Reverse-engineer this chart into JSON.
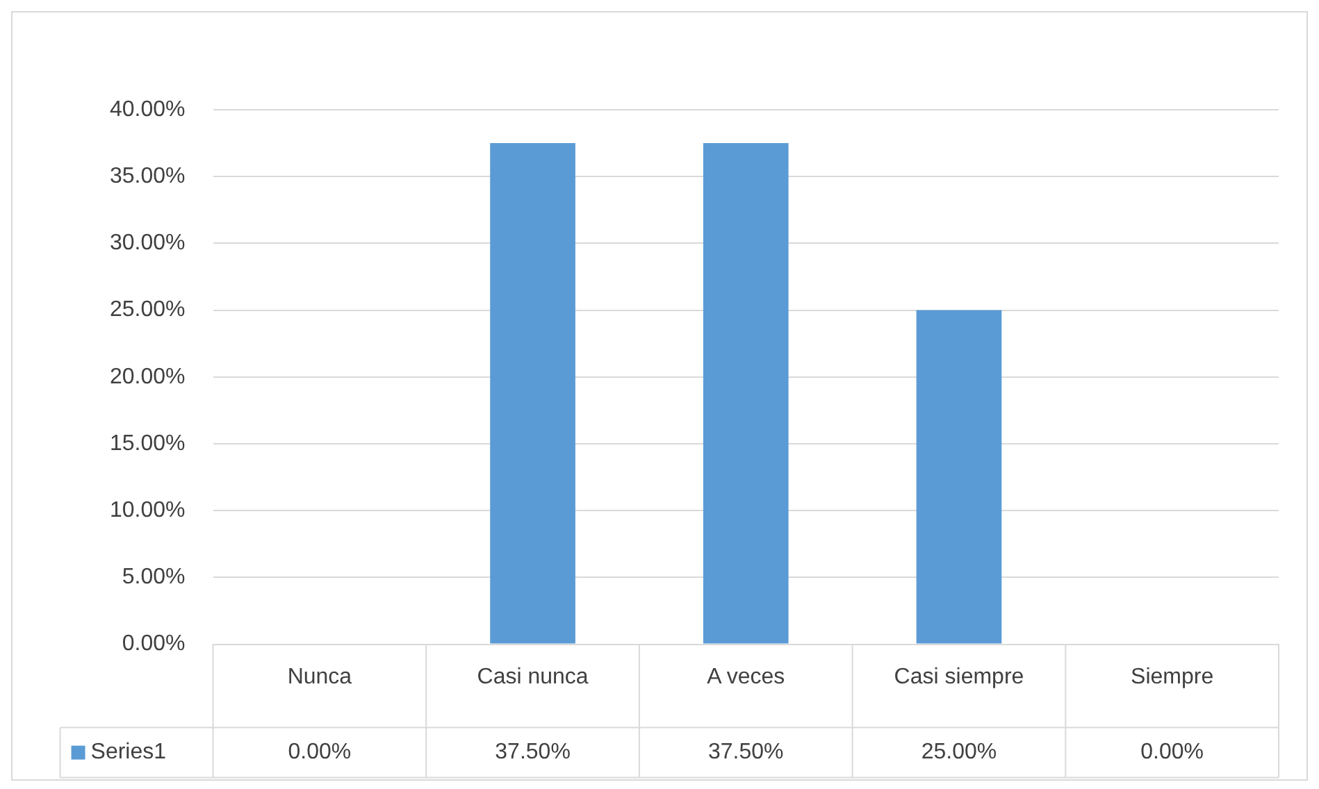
{
  "chart_data": {
    "type": "bar",
    "categories": [
      "Nunca",
      "Casi nunca",
      "A veces",
      "Casi siempre",
      "Siempre"
    ],
    "series": [
      {
        "name": "Series1",
        "color": "#5b9bd5",
        "values": [
          0,
          37.5,
          37.5,
          25,
          0
        ],
        "value_labels": [
          "0.00%",
          "37.50%",
          "37.50%",
          "25.00%",
          "0.00%"
        ]
      }
    ],
    "ylim": [
      0,
      40
    ],
    "yticks": [
      {
        "value": 0,
        "label": "0.00%"
      },
      {
        "value": 5,
        "label": "5.00%"
      },
      {
        "value": 10,
        "label": "10.00%"
      },
      {
        "value": 15,
        "label": "15.00%"
      },
      {
        "value": 20,
        "label": "20.00%"
      },
      {
        "value": 25,
        "label": "25.00%"
      },
      {
        "value": 30,
        "label": "30.00%"
      },
      {
        "value": 35,
        "label": "35.00%"
      },
      {
        "value": 40,
        "label": "40.00%"
      }
    ],
    "grid": "y",
    "legend": "bottom"
  }
}
